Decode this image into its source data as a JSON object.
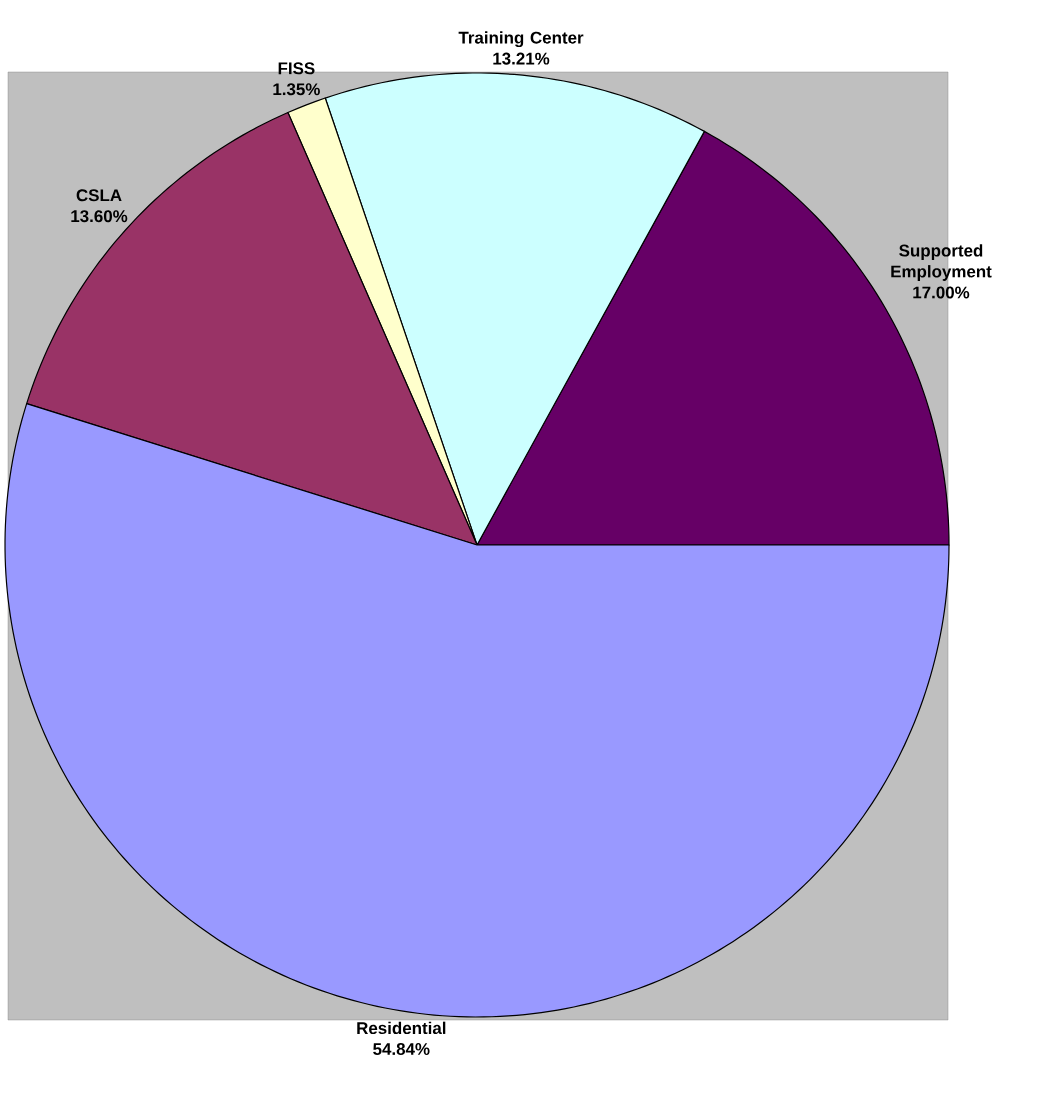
{
  "chart_data": {
    "type": "pie",
    "categories": [
      "Supported Employment",
      "Training Center",
      "FISS",
      "CSLA",
      "Residential"
    ],
    "values": [
      17.0,
      13.21,
      1.35,
      13.6,
      54.84
    ],
    "value_labels": [
      "17.00%",
      "13.21%",
      "1.35%",
      "13.60%",
      "54.84%"
    ],
    "colors": [
      "#660066",
      "#ccffff",
      "#ffffcc",
      "#993366",
      "#9999ff"
    ]
  }
}
